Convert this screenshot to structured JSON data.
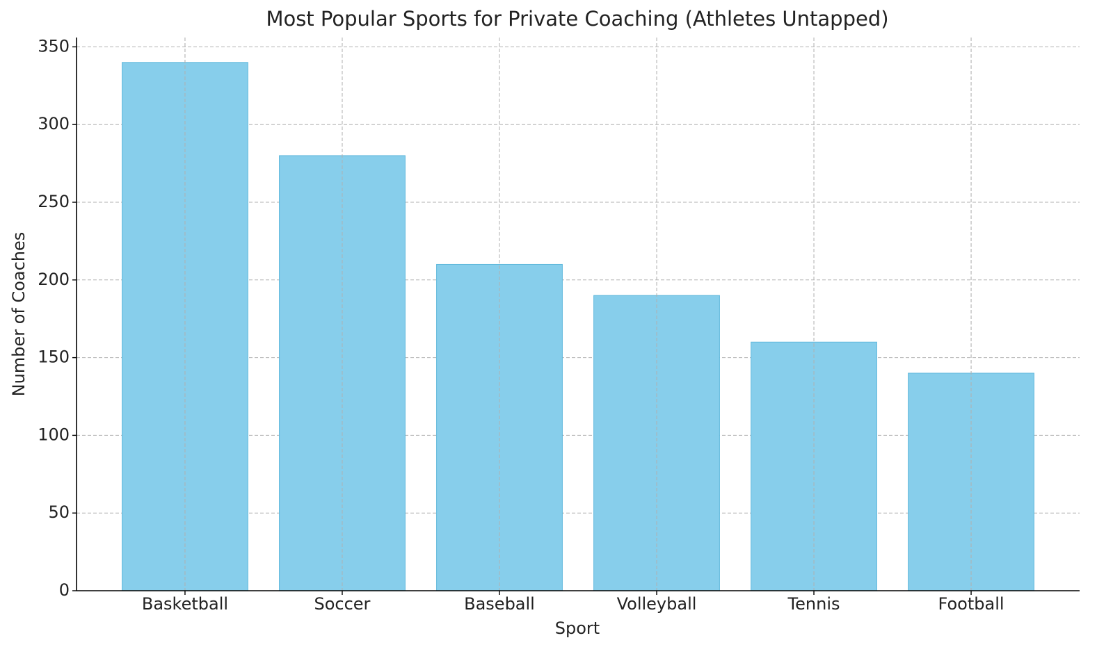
{
  "chart_data": {
    "type": "bar",
    "title": "Most Popular Sports for Private Coaching (Athletes Untapped)",
    "x_label": "Sport",
    "y_label": "Number of Coaches",
    "categories": [
      "Basketball",
      "Soccer",
      "Baseball",
      "Volleyball",
      "Tennis",
      "Football"
    ],
    "values": [
      340,
      280,
      210,
      190,
      160,
      140
    ],
    "color": "#87ceeb",
    "edge_color": "#5fb8dc",
    "ylim": [
      0,
      356
    ],
    "yticks": [
      0,
      50,
      100,
      150,
      200,
      250,
      300,
      350
    ],
    "grid": true
  }
}
